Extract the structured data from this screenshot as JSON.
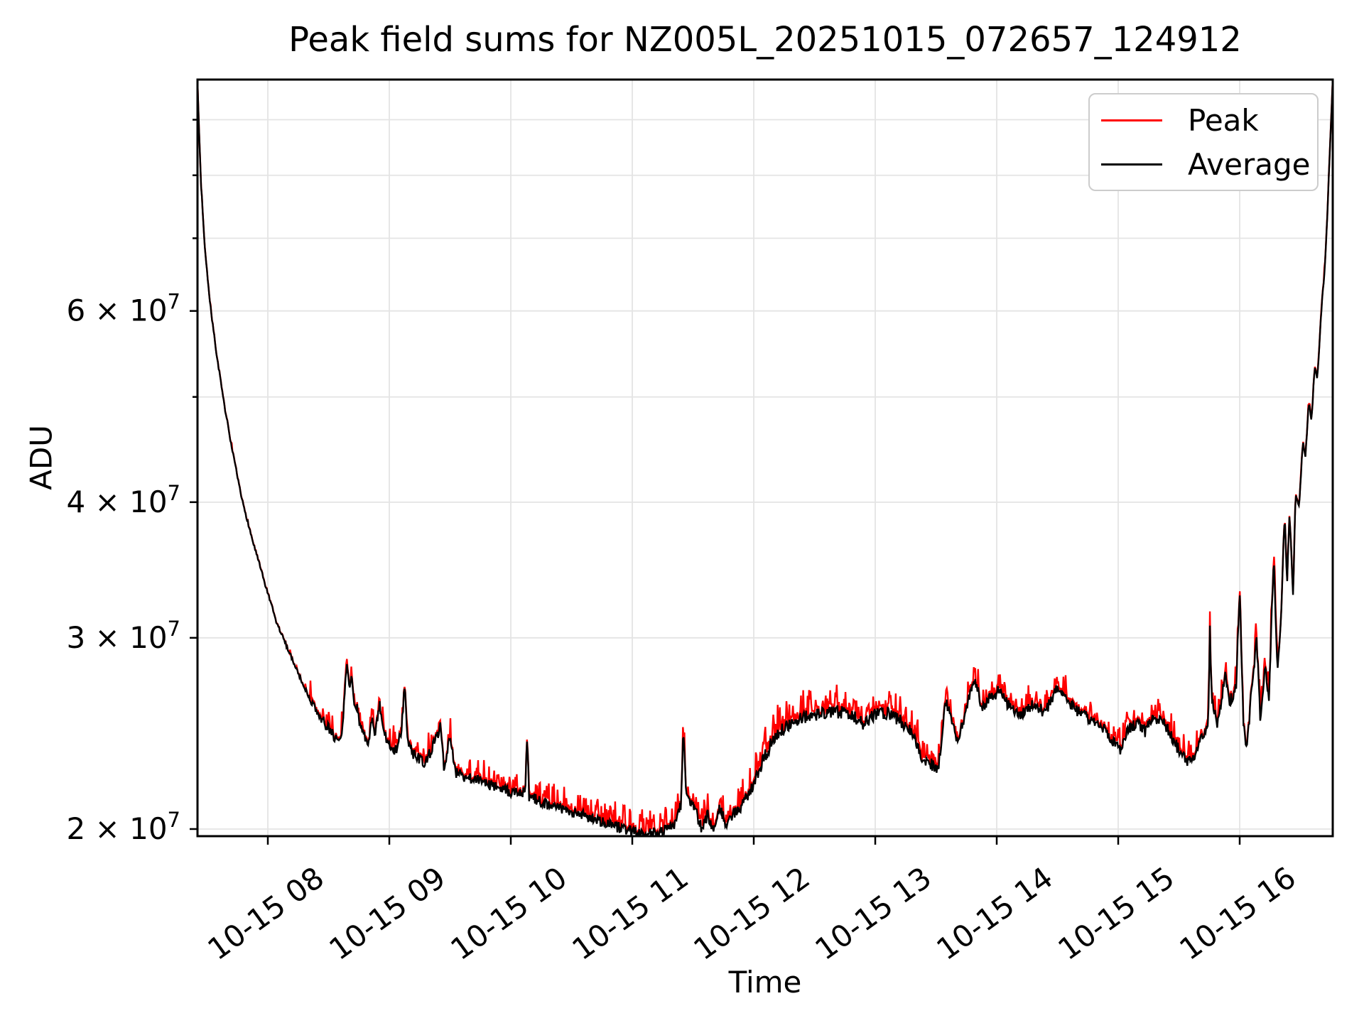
{
  "title": "Peak field sums for NZ005L_20251015_072657_124912",
  "axes": {
    "xlabel": "Time",
    "ylabel": "ADU"
  },
  "chart_data": {
    "type": "line",
    "title": "Peak field sums for NZ005L_20251015_072657_124912",
    "xlabel": "Time",
    "ylabel": "ADU",
    "yscale": "log",
    "grid": true,
    "legend_position": "upper right",
    "background": "#ffffff",
    "grid_color": "#e4e4e4",
    "spine_color": "#000000",
    "xlim_hours": [
      7.421,
      16.766
    ],
    "ylim": [
      19700000,
      98000000
    ],
    "x_ticks": [
      {
        "t": 8,
        "label": "10-15 08"
      },
      {
        "t": 9,
        "label": "10-15 09"
      },
      {
        "t": 10,
        "label": "10-15 10"
      },
      {
        "t": 11,
        "label": "10-15 11"
      },
      {
        "t": 12,
        "label": "10-15 12"
      },
      {
        "t": 13,
        "label": "10-15 13"
      },
      {
        "t": 14,
        "label": "10-15 14"
      },
      {
        "t": 15,
        "label": "10-15 15"
      },
      {
        "t": 16,
        "label": "10-15 16"
      }
    ],
    "x_tick_rotation_deg": 36,
    "y_ticks_labeled": [
      {
        "value": 20000000,
        "coef": "2",
        "exp": "7"
      },
      {
        "value": 30000000,
        "coef": "3",
        "exp": "7"
      },
      {
        "value": 40000000,
        "coef": "4",
        "exp": "7"
      },
      {
        "value": 60000000,
        "coef": "6",
        "exp": "7"
      }
    ],
    "y_ticks_minor": [
      50000000,
      70000000,
      80000000,
      90000000
    ],
    "values_unit": "1e7 ADU",
    "sample_step_hours": 0.006,
    "series": [
      {
        "name": "Peak",
        "color": "#ff0000",
        "derived_from": "Average",
        "peak_base_ratio_by_region": [
          1.001,
          1.004,
          1.006,
          1.005,
          1.002
        ]
      },
      {
        "name": "Average",
        "color": "#000000",
        "trend_keypoints": [
          [
            7.421,
            9.8
          ],
          [
            7.43,
            9.0
          ],
          [
            7.45,
            7.85
          ],
          [
            7.48,
            6.9
          ],
          [
            7.52,
            6.15
          ],
          [
            7.57,
            5.55
          ],
          [
            7.63,
            5.0
          ],
          [
            7.7,
            4.5
          ],
          [
            7.78,
            4.05
          ],
          [
            7.87,
            3.7
          ],
          [
            7.97,
            3.38
          ],
          [
            8.07,
            3.1
          ],
          [
            8.17,
            2.92
          ],
          [
            8.27,
            2.75
          ],
          [
            8.37,
            2.6
          ],
          [
            8.47,
            2.5
          ],
          [
            8.55,
            2.43
          ],
          [
            8.6,
            2.4
          ],
          [
            8.62,
            2.55
          ],
          [
            8.645,
            2.8
          ],
          [
            8.66,
            2.82
          ],
          [
            8.675,
            2.7
          ],
          [
            8.69,
            2.76
          ],
          [
            8.71,
            2.62
          ],
          [
            8.73,
            2.6
          ],
          [
            8.75,
            2.52
          ],
          [
            8.78,
            2.46
          ],
          [
            8.82,
            2.38
          ],
          [
            8.86,
            2.54
          ],
          [
            8.88,
            2.42
          ],
          [
            8.92,
            2.6
          ],
          [
            8.95,
            2.45
          ],
          [
            9.0,
            2.4
          ],
          [
            9.05,
            2.36
          ],
          [
            9.1,
            2.45
          ],
          [
            9.125,
            2.72
          ],
          [
            9.15,
            2.4
          ],
          [
            9.2,
            2.34
          ],
          [
            9.3,
            2.3
          ],
          [
            9.42,
            2.48
          ],
          [
            9.45,
            2.28
          ],
          [
            9.5,
            2.44
          ],
          [
            9.54,
            2.26
          ],
          [
            9.6,
            2.24
          ],
          [
            9.7,
            2.22
          ],
          [
            9.8,
            2.2
          ],
          [
            9.9,
            2.18
          ],
          [
            10.0,
            2.16
          ],
          [
            10.12,
            2.16
          ],
          [
            10.135,
            2.46
          ],
          [
            10.15,
            2.14
          ],
          [
            10.25,
            2.12
          ],
          [
            10.35,
            2.1
          ],
          [
            10.45,
            2.08
          ],
          [
            10.55,
            2.07
          ],
          [
            10.65,
            2.05
          ],
          [
            10.75,
            2.03
          ],
          [
            10.85,
            2.01
          ],
          [
            10.95,
            2.0
          ],
          [
            11.05,
            1.98
          ],
          [
            11.15,
            1.98
          ],
          [
            11.25,
            1.99
          ],
          [
            11.35,
            2.02
          ],
          [
            11.4,
            2.1
          ],
          [
            11.42,
            2.47
          ],
          [
            11.44,
            2.2
          ],
          [
            11.47,
            2.12
          ],
          [
            11.52,
            2.08
          ],
          [
            11.57,
            2.0
          ],
          [
            11.62,
            2.06
          ],
          [
            11.67,
            2.0
          ],
          [
            11.72,
            2.1
          ],
          [
            11.77,
            2.02
          ],
          [
            11.82,
            2.06
          ],
          [
            11.87,
            2.08
          ],
          [
            11.92,
            2.12
          ],
          [
            12.0,
            2.2
          ],
          [
            12.08,
            2.32
          ],
          [
            12.16,
            2.42
          ],
          [
            12.25,
            2.48
          ],
          [
            12.35,
            2.52
          ],
          [
            12.5,
            2.55
          ],
          [
            12.65,
            2.57
          ],
          [
            12.8,
            2.55
          ],
          [
            12.9,
            2.5
          ],
          [
            13.0,
            2.55
          ],
          [
            13.1,
            2.56
          ],
          [
            13.2,
            2.52
          ],
          [
            13.3,
            2.46
          ],
          [
            13.38,
            2.32
          ],
          [
            13.45,
            2.3
          ],
          [
            13.52,
            2.28
          ],
          [
            13.58,
            2.62
          ],
          [
            13.63,
            2.52
          ],
          [
            13.68,
            2.4
          ],
          [
            13.75,
            2.58
          ],
          [
            13.82,
            2.76
          ],
          [
            13.88,
            2.58
          ],
          [
            13.95,
            2.65
          ],
          [
            14.02,
            2.68
          ],
          [
            14.1,
            2.6
          ],
          [
            14.2,
            2.55
          ],
          [
            14.3,
            2.6
          ],
          [
            14.4,
            2.56
          ],
          [
            14.5,
            2.7
          ],
          [
            14.58,
            2.62
          ],
          [
            14.68,
            2.56
          ],
          [
            14.78,
            2.52
          ],
          [
            14.88,
            2.48
          ],
          [
            14.95,
            2.42
          ],
          [
            15.02,
            2.36
          ],
          [
            15.08,
            2.48
          ],
          [
            15.15,
            2.5
          ],
          [
            15.22,
            2.46
          ],
          [
            15.3,
            2.54
          ],
          [
            15.38,
            2.5
          ],
          [
            15.45,
            2.42
          ],
          [
            15.52,
            2.34
          ],
          [
            15.6,
            2.3
          ],
          [
            15.68,
            2.42
          ],
          [
            15.74,
            2.48
          ],
          [
            15.755,
            3.05
          ],
          [
            15.77,
            2.62
          ],
          [
            15.82,
            2.5
          ],
          [
            15.88,
            2.78
          ],
          [
            15.92,
            2.62
          ],
          [
            15.97,
            2.7
          ],
          [
            16.0,
            3.32
          ],
          [
            16.03,
            2.48
          ],
          [
            16.06,
            2.38
          ],
          [
            16.1,
            2.7
          ],
          [
            16.14,
            2.98
          ],
          [
            16.17,
            2.5
          ],
          [
            16.21,
            2.85
          ],
          [
            16.24,
            2.6
          ],
          [
            16.28,
            3.55
          ],
          [
            16.31,
            2.78
          ],
          [
            16.34,
            3.1
          ],
          [
            16.37,
            3.9
          ],
          [
            16.39,
            3.35
          ],
          [
            16.41,
            3.92
          ],
          [
            16.44,
            3.25
          ],
          [
            16.46,
            4.08
          ],
          [
            16.49,
            3.95
          ],
          [
            16.52,
            4.55
          ],
          [
            16.54,
            4.4
          ],
          [
            16.57,
            4.95
          ],
          [
            16.59,
            4.75
          ],
          [
            16.62,
            5.35
          ],
          [
            16.64,
            5.2
          ],
          [
            16.67,
            5.95
          ],
          [
            16.7,
            6.55
          ],
          [
            16.72,
            7.3
          ],
          [
            16.74,
            8.3
          ],
          [
            16.766,
            9.8
          ]
        ]
      }
    ],
    "noise_model": {
      "seed": 7,
      "regions": [
        {
          "t0": 7.421,
          "t1": 8.35,
          "amp": 0.004,
          "spike_prob": 0.06,
          "spike_max": 0.015
        },
        {
          "t0": 8.35,
          "t1": 12.0,
          "amp": 0.012,
          "spike_prob": 0.3,
          "spike_max": 0.045
        },
        {
          "t0": 12.0,
          "t1": 13.55,
          "amp": 0.014,
          "spike_prob": 0.45,
          "spike_max": 0.05
        },
        {
          "t0": 13.55,
          "t1": 16.32,
          "amp": 0.013,
          "spike_prob": 0.35,
          "spike_max": 0.04
        },
        {
          "t0": 16.32,
          "t1": 16.77,
          "amp": 0.005,
          "spike_prob": 0.1,
          "spike_max": 0.012
        }
      ]
    }
  },
  "legend": {
    "items": [
      {
        "label": "Peak",
        "color": "#ff0000"
      },
      {
        "label": "Average",
        "color": "#000000"
      }
    ]
  }
}
